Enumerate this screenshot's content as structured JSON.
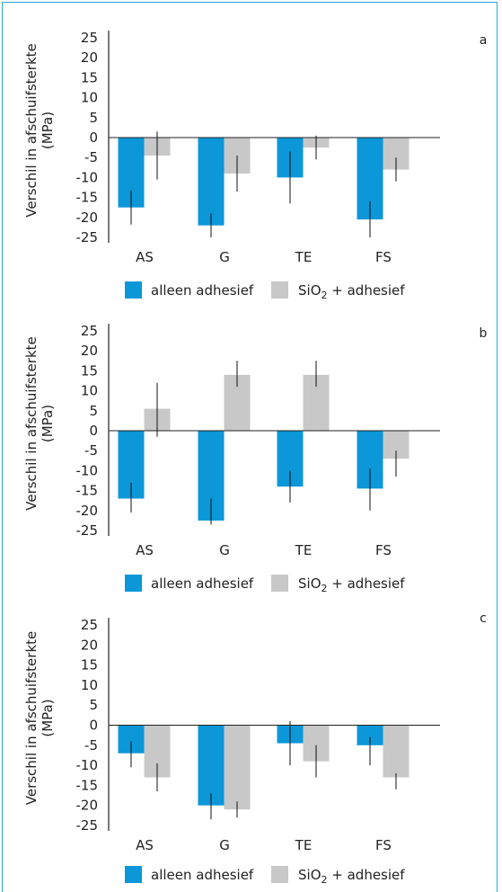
{
  "colors": {
    "blue": "#0b97d8",
    "gray": "#c8c8c8",
    "frame": "#2aa8d8",
    "axis": "#222222"
  },
  "ylabel_line1": "Verschil in afschuifsterkte",
  "ylabel_line2": "(MPa)",
  "legend": {
    "blue": "alleen adhesief",
    "gray_prefix": "SiO",
    "gray_sub": "2",
    "gray_suffix": " + adhesief"
  },
  "chart_data": [
    {
      "type": "bar",
      "panel": "a",
      "categories": [
        "AS",
        "G",
        "TE",
        "FS"
      ],
      "yticks": [
        25,
        20,
        15,
        10,
        5,
        0,
        -5,
        -10,
        -15,
        -20,
        -25
      ],
      "ylim": [
        -25,
        25
      ],
      "series": [
        {
          "name": "alleen adhesief",
          "values": [
            -17.5,
            -22,
            -10,
            -20.5
          ],
          "err_low": [
            -21.8,
            -25,
            -16.5,
            -25
          ],
          "err_high": [
            -13.2,
            -19,
            -3.5,
            -16
          ]
        },
        {
          "name": "SiO2 + adhesief",
          "values": [
            -4.5,
            -9,
            -2.5,
            -8
          ],
          "err_low": [
            -10.5,
            -13.5,
            -5.5,
            -11
          ],
          "err_high": [
            1.5,
            -4.5,
            0.5,
            -5
          ]
        }
      ]
    },
    {
      "type": "bar",
      "panel": "b",
      "categories": [
        "AS",
        "G",
        "TE",
        "FS"
      ],
      "yticks": [
        25,
        20,
        15,
        10,
        5,
        0,
        -5,
        -10,
        -15,
        -20,
        -25
      ],
      "ylim": [
        -25,
        25
      ],
      "series": [
        {
          "name": "alleen adhesief",
          "values": [
            -17,
            -22.5,
            -14,
            -14.5
          ],
          "err_low": [
            -20.5,
            -23.5,
            -18,
            -20
          ],
          "err_high": [
            -13,
            -17,
            -10,
            -9.5
          ]
        },
        {
          "name": "SiO2 + adhesief",
          "values": [
            5.5,
            14,
            14,
            -7
          ],
          "err_low": [
            -1.5,
            11,
            11,
            -11.5
          ],
          "err_high": [
            12,
            17.5,
            17.5,
            -5
          ]
        }
      ]
    },
    {
      "type": "bar",
      "panel": "c",
      "categories": [
        "AS",
        "G",
        "TE",
        "FS"
      ],
      "yticks": [
        25,
        20,
        15,
        10,
        5,
        0,
        -5,
        -10,
        -15,
        -20,
        -25
      ],
      "ylim": [
        -25,
        25
      ],
      "series": [
        {
          "name": "alleen adhesief",
          "values": [
            -7,
            -20,
            -4.5,
            -5
          ],
          "err_low": [
            -10.5,
            -23.5,
            -10,
            -10
          ],
          "err_high": [
            -4,
            -17,
            1,
            -3
          ]
        },
        {
          "name": "SiO2 + adhesief",
          "values": [
            -13,
            -21,
            -9,
            -13
          ],
          "err_low": [
            -16.5,
            -23,
            -13,
            -16
          ],
          "err_high": [
            -9.5,
            -19,
            -5,
            -12
          ]
        }
      ]
    }
  ]
}
